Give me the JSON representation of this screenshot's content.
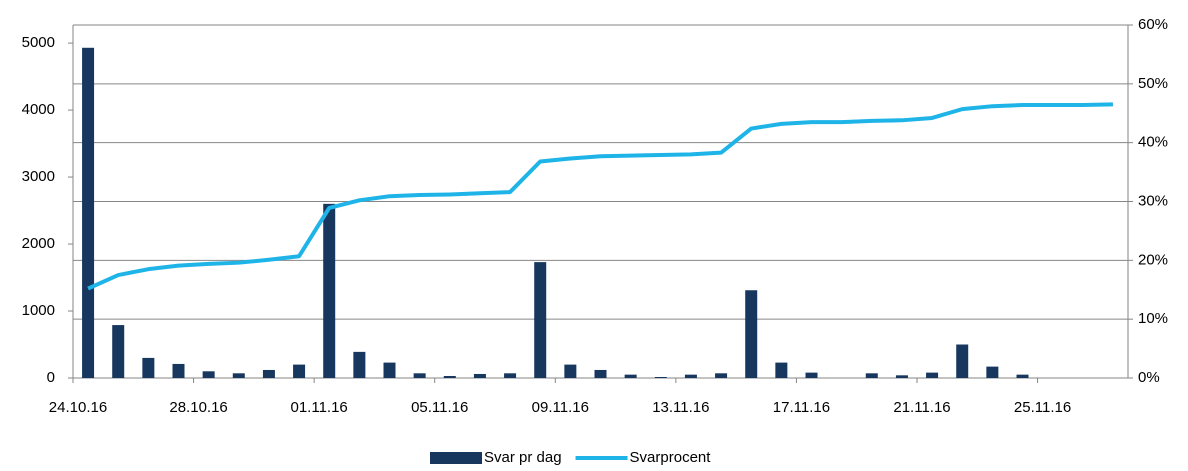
{
  "chart_data": {
    "type": "bar-line",
    "categories": [
      "24.10.16",
      null,
      null,
      null,
      "28.10.16",
      null,
      null,
      null,
      "01.11.16",
      null,
      null,
      null,
      "05.11.16",
      null,
      null,
      null,
      "09.11.16",
      null,
      null,
      null,
      "13.11.16",
      null,
      null,
      null,
      "17.11.16",
      null,
      null,
      null,
      "21.11.16",
      null,
      null,
      null,
      "25.11.16",
      null,
      null
    ],
    "series": [
      {
        "name": "Svar pr dag",
        "color": "#17375e",
        "type": "bar",
        "values": [
          4930,
          790,
          300,
          210,
          100,
          70,
          120,
          200,
          2600,
          390,
          230,
          70,
          30,
          60,
          70,
          1730,
          200,
          120,
          50,
          15,
          50,
          70,
          1310,
          230,
          80,
          0,
          70,
          40,
          80,
          500,
          170,
          50,
          0,
          0,
          0
        ]
      },
      {
        "name": "Svarprocent",
        "color": "#1fb4e8",
        "type": "line",
        "axis": "y2",
        "values": [
          15.2,
          17.5,
          18.5,
          19.1,
          19.4,
          19.6,
          20.1,
          20.7,
          28.9,
          30.2,
          30.9,
          31.1,
          31.2,
          31.4,
          31.6,
          36.8,
          37.3,
          37.7,
          37.8,
          37.9,
          38.0,
          38.3,
          42.4,
          43.2,
          43.5,
          43.5,
          43.7,
          43.8,
          44.2,
          45.7,
          46.2,
          46.4,
          46.4,
          46.4,
          46.5
        ]
      }
    ],
    "ylim": [
      0,
      5270
    ],
    "yticks": [
      0,
      1000,
      2000,
      3000,
      4000,
      5000
    ],
    "y2lim": [
      0,
      60
    ],
    "y2ticks": [
      {
        "value": 0,
        "label": "0%"
      },
      {
        "value": 10,
        "label": "10%"
      },
      {
        "value": 20,
        "label": "20%"
      },
      {
        "value": 30,
        "label": "30%"
      },
      {
        "value": 40,
        "label": "40%"
      },
      {
        "value": 50,
        "label": "50%"
      },
      {
        "value": 60,
        "label": "60%"
      }
    ],
    "grid": true,
    "legend": "bottom"
  }
}
